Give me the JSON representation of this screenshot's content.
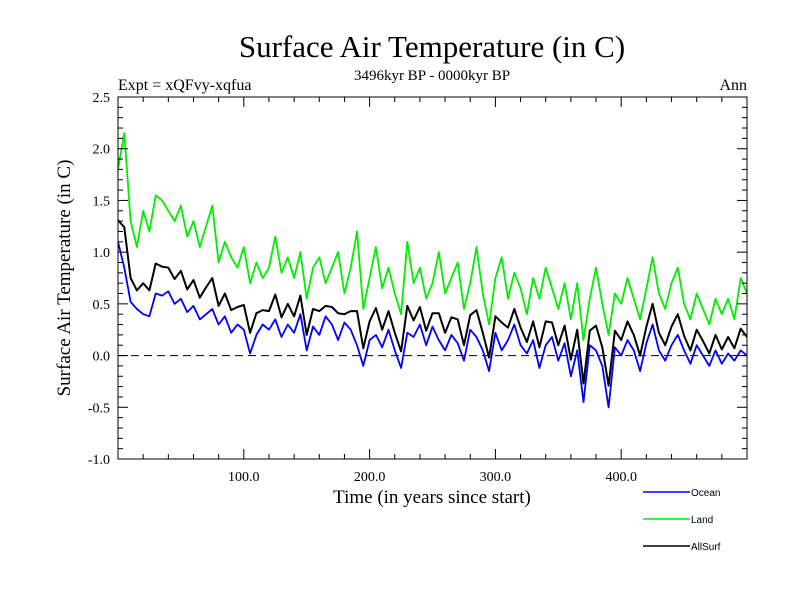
{
  "chart_data": {
    "type": "line",
    "title": "Surface Air Temperature (in C)",
    "subtitle": "3496kyr BP - 0000kyr BP",
    "experiment": "Expt = xQFvy-xqfua",
    "season": "Ann",
    "xlabel": "Time (in years since start)",
    "ylabel": "Surface Air Temperature (in C)",
    "xlim": [
      0,
      500
    ],
    "ylim": [
      -1.0,
      2.5
    ],
    "xticks": [
      100,
      200,
      300,
      400
    ],
    "xtick_labels": [
      "100.0",
      "200.0",
      "300.0",
      "400.0"
    ],
    "yticks": [
      -1.0,
      -0.5,
      0.0,
      0.5,
      1.0,
      1.5,
      2.0,
      2.5
    ],
    "ytick_labels": [
      "-1.0",
      "-0.5",
      "0.0",
      "0.5",
      "1.0",
      "1.5",
      "2.0",
      "2.5"
    ],
    "reference_line": {
      "y": 0.0,
      "style": "dashed"
    },
    "grid": false,
    "legend_position": "bottom-right, below plot",
    "x_start": 0,
    "x_step": 5,
    "series": [
      {
        "name": "Ocean",
        "color": "#0000ff",
        "values": [
          1.1,
          0.85,
          0.52,
          0.45,
          0.4,
          0.38,
          0.6,
          0.58,
          0.62,
          0.5,
          0.55,
          0.42,
          0.48,
          0.35,
          0.4,
          0.45,
          0.3,
          0.38,
          0.22,
          0.3,
          0.25,
          0.02,
          0.2,
          0.3,
          0.25,
          0.35,
          0.18,
          0.3,
          0.22,
          0.4,
          0.05,
          0.28,
          0.2,
          0.38,
          0.3,
          0.15,
          0.32,
          0.25,
          0.1,
          -0.1,
          0.15,
          0.2,
          0.08,
          0.25,
          0.05,
          -0.12,
          0.22,
          0.18,
          0.3,
          0.1,
          0.28,
          0.15,
          0.05,
          0.2,
          0.12,
          -0.05,
          0.25,
          0.18,
          0.05,
          -0.15,
          0.22,
          0.05,
          0.15,
          0.3,
          0.1,
          0.02,
          0.15,
          -0.12,
          0.1,
          0.18,
          -0.05,
          0.12,
          -0.2,
          0.05,
          -0.45,
          0.1,
          0.05,
          -0.1,
          -0.5,
          0.08,
          0.0,
          0.15,
          0.05,
          -0.15,
          0.12,
          0.3,
          0.05,
          -0.05,
          0.1,
          0.2,
          0.05,
          -0.08,
          0.1,
          0.0,
          -0.1,
          0.05,
          -0.08,
          0.02,
          -0.05,
          0.05,
          0.0
        ]
      },
      {
        "name": "Land",
        "color": "#00ee00",
        "values": [
          1.8,
          2.15,
          1.3,
          1.05,
          1.4,
          1.2,
          1.55,
          1.5,
          1.4,
          1.3,
          1.45,
          1.15,
          1.3,
          1.05,
          1.25,
          1.45,
          0.9,
          1.1,
          0.95,
          0.85,
          1.05,
          0.7,
          0.9,
          0.75,
          0.85,
          1.15,
          0.8,
          0.95,
          0.75,
          1.0,
          0.55,
          0.85,
          0.95,
          0.7,
          0.85,
          1.0,
          0.6,
          0.85,
          1.2,
          0.45,
          0.75,
          1.05,
          0.65,
          0.85,
          0.6,
          0.4,
          1.1,
          0.7,
          0.85,
          0.55,
          0.7,
          1.0,
          0.6,
          0.75,
          0.9,
          0.45,
          0.7,
          1.05,
          0.6,
          0.3,
          0.75,
          0.95,
          0.55,
          0.8,
          0.65,
          0.4,
          0.75,
          0.55,
          0.85,
          0.65,
          0.45,
          0.7,
          0.35,
          0.7,
          0.15,
          0.55,
          0.85,
          0.5,
          0.2,
          0.6,
          0.5,
          0.75,
          0.55,
          0.35,
          0.65,
          0.95,
          0.6,
          0.45,
          0.7,
          0.85,
          0.5,
          0.35,
          0.6,
          0.45,
          0.3,
          0.55,
          0.4,
          0.55,
          0.35,
          0.75,
          0.6
        ]
      },
      {
        "name": "AllSurf",
        "color": "#000000",
        "values": [
          1.31,
          1.24,
          0.75,
          0.63,
          0.7,
          0.63,
          0.89,
          0.86,
          0.85,
          0.74,
          0.82,
          0.64,
          0.73,
          0.56,
          0.66,
          0.75,
          0.48,
          0.6,
          0.44,
          0.47,
          0.49,
          0.22,
          0.41,
          0.44,
          0.43,
          0.59,
          0.37,
          0.5,
          0.38,
          0.58,
          0.2,
          0.45,
          0.43,
          0.48,
          0.47,
          0.41,
          0.4,
          0.43,
          0.43,
          0.07,
          0.33,
          0.46,
          0.25,
          0.43,
          0.22,
          0.04,
          0.48,
          0.34,
          0.47,
          0.24,
          0.41,
          0.41,
          0.22,
          0.37,
          0.35,
          0.1,
          0.39,
          0.44,
          0.22,
          -0.02,
          0.38,
          0.32,
          0.27,
          0.45,
          0.27,
          0.13,
          0.33,
          0.08,
          0.33,
          0.32,
          0.1,
          0.29,
          -0.04,
          0.25,
          -0.27,
          0.24,
          0.29,
          0.08,
          -0.29,
          0.24,
          0.15,
          0.33,
          0.2,
          0.0,
          0.28,
          0.5,
          0.22,
          0.1,
          0.28,
          0.4,
          0.19,
          0.05,
          0.25,
          0.14,
          0.02,
          0.2,
          0.06,
          0.18,
          0.07,
          0.26,
          0.18
        ]
      }
    ]
  }
}
